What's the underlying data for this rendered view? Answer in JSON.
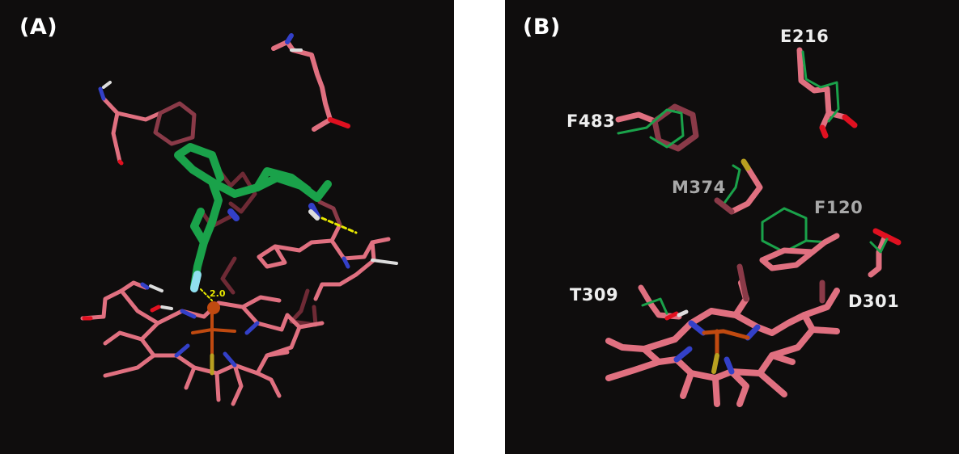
{
  "panel_a": {
    "label": "(A)",
    "distance_label": "2.0"
  },
  "panel_b": {
    "label": "(B)",
    "residues": {
      "e216": "E216",
      "f483": "F483",
      "m374": "M374",
      "f120": "F120",
      "t309": "T309",
      "d301": "D301"
    }
  },
  "colors": {
    "background": "#0f0d0d",
    "carbon_pink": "#e07080",
    "carbon_dark": "#8a3a48",
    "ligand_green": "#1aa24a",
    "nitrogen_blue": "#3340c8",
    "oxygen_red": "#e01020",
    "iron_orange": "#c04a10",
    "sulfur_yellow": "#b8a020",
    "hbond_yellow": "#e8e800",
    "fluorine_cyan": "#90e0f0"
  }
}
